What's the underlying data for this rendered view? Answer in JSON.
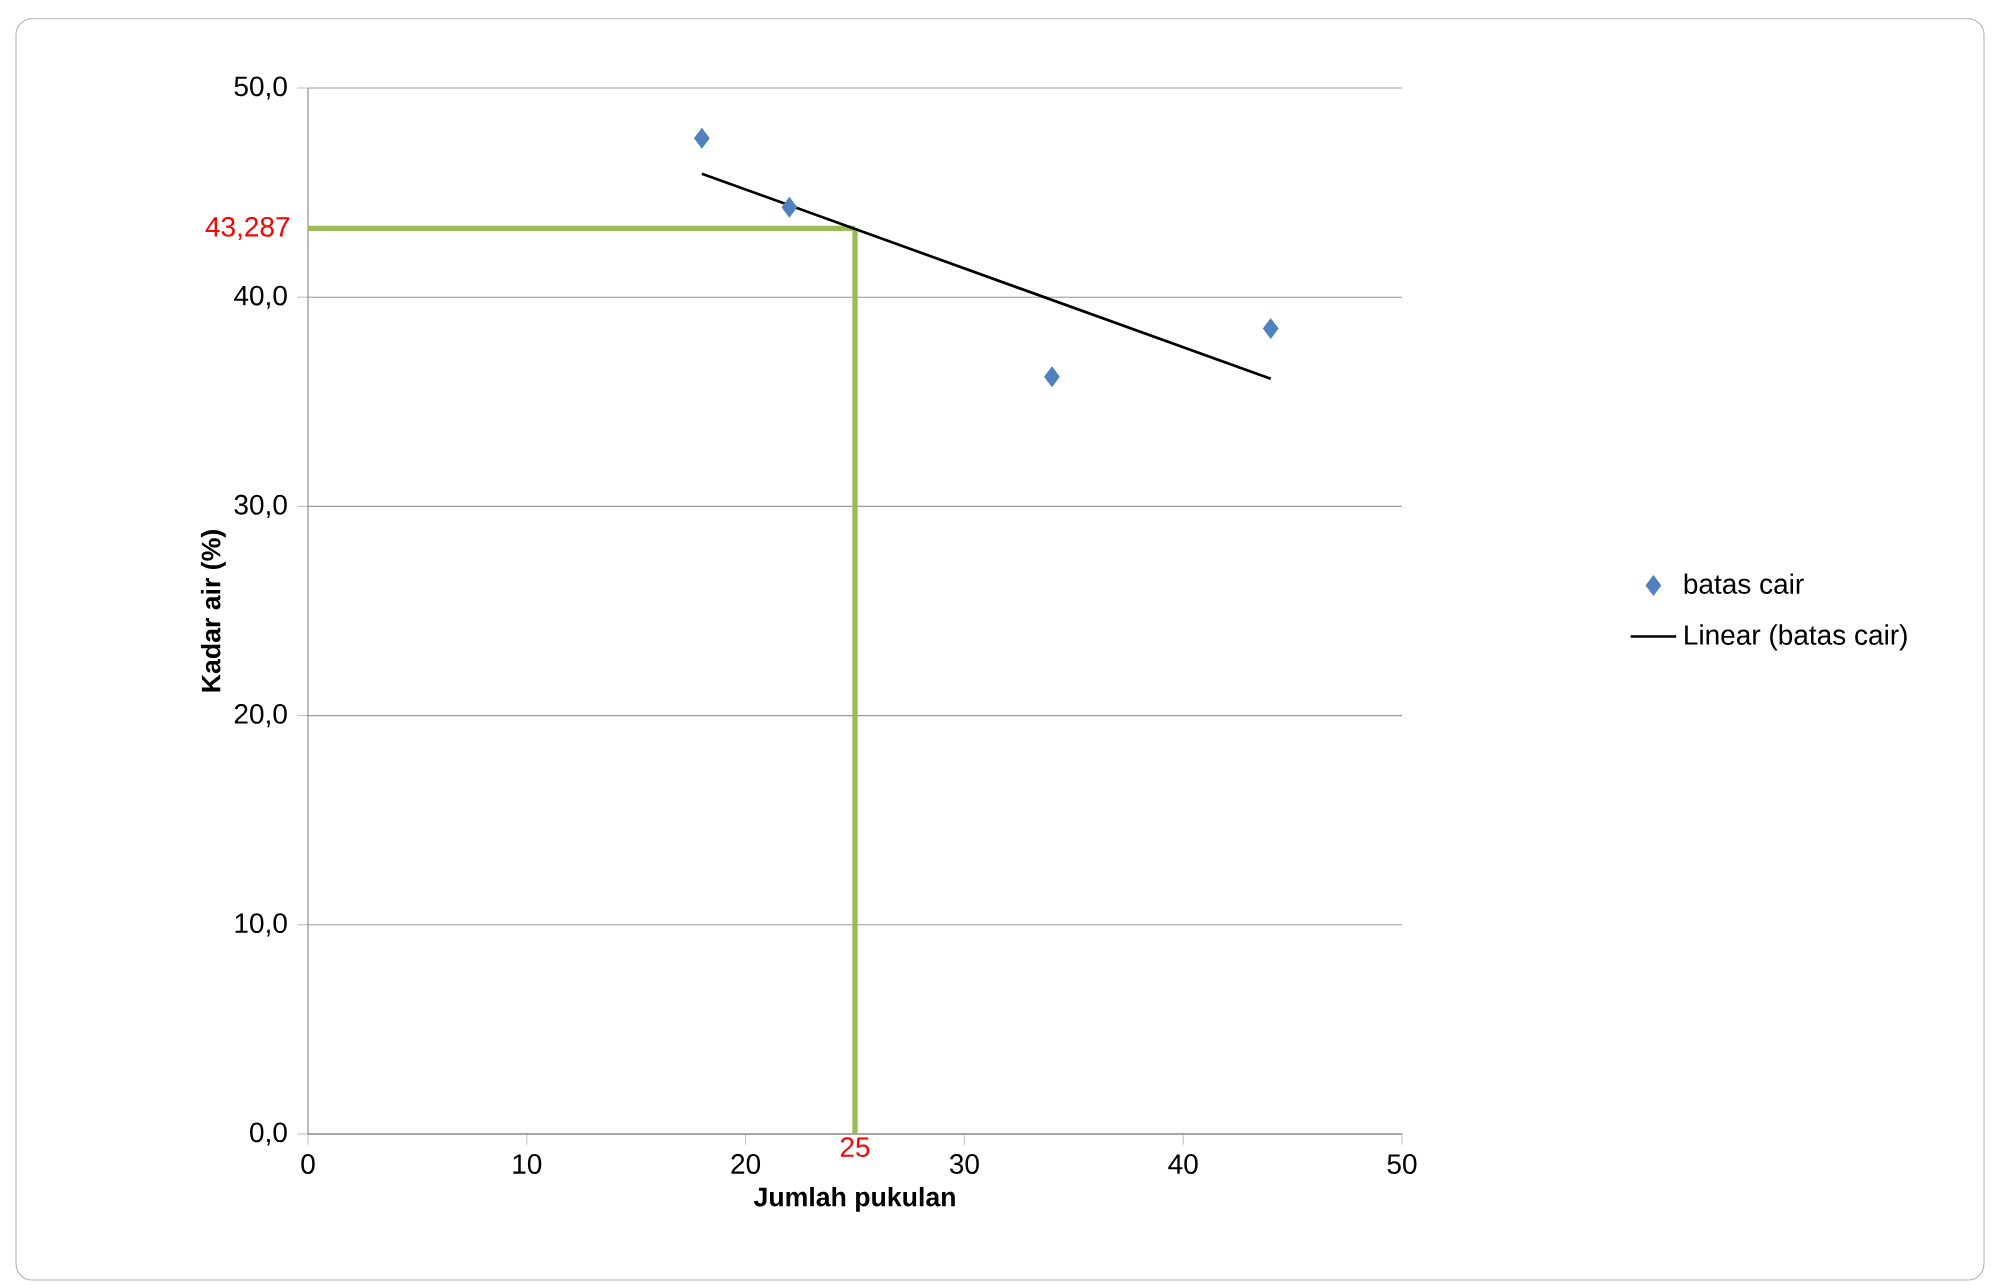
{
  "chart_data": {
    "type": "scatter",
    "xlabel": "Jumlah pukulan",
    "ylabel": "Kadar air (%)",
    "xlim": [
      0,
      50
    ],
    "xticks": [
      0,
      10,
      20,
      30,
      40,
      50
    ],
    "ylim": [
      0,
      50
    ],
    "yticks": [
      {
        "value": 0,
        "label": "0,0"
      },
      {
        "value": 10,
        "label": "10,0"
      },
      {
        "value": 20,
        "label": "20,0"
      },
      {
        "value": 30,
        "label": "30,0"
      },
      {
        "value": 40,
        "label": "40,0"
      },
      {
        "value": 50,
        "label": "50,0"
      }
    ],
    "grid": "y",
    "legend": "right",
    "series": [
      {
        "name": "batas cair",
        "marker": "diamond",
        "color": "#4f81bd",
        "x": [
          18,
          22,
          34,
          44
        ],
        "values": [
          47.6,
          44.3,
          36.2,
          38.5
        ]
      },
      {
        "name": "Linear (batas cair)",
        "type": "line",
        "marker": "none",
        "color": "#000000",
        "x": [
          18,
          44
        ],
        "values": [
          45.9,
          36.1
        ]
      }
    ],
    "ref_lines": [
      {
        "axis": "x",
        "value": 25,
        "label": "25",
        "color": "#9bbb59"
      },
      {
        "axis": "y",
        "value": 43.287,
        "label": "43,287",
        "color": "#9bbb59"
      }
    ]
  }
}
